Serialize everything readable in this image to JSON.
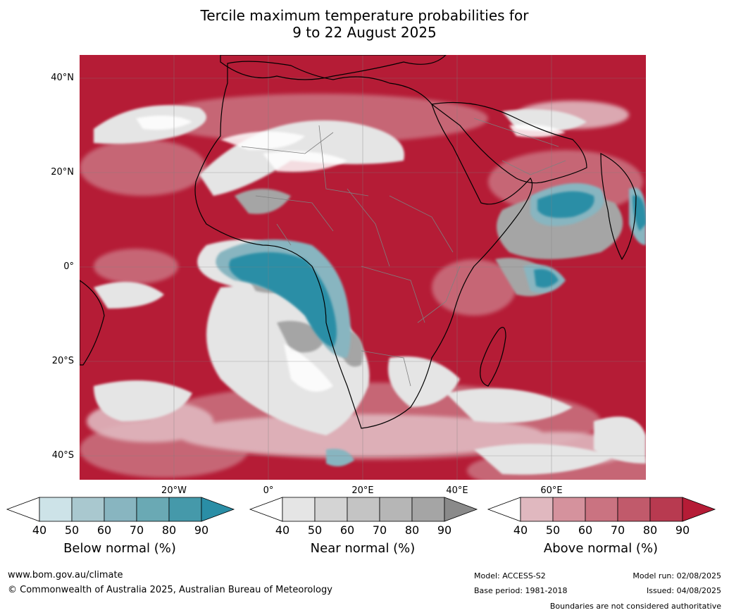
{
  "title": {
    "line1": "Tercile maximum temperature probabilities for",
    "line2": "9 to 22 August 2025"
  },
  "map": {
    "lat_labels": [
      "40°N",
      "20°N",
      "0°",
      "20°S",
      "40°S"
    ],
    "lon_labels": [
      "20°W",
      "0°",
      "20°E",
      "40°E",
      "60°E"
    ],
    "background_color": "#b51c36",
    "boundary_color": "#000000",
    "country_border_color": "#7f7f7f"
  },
  "legends": [
    {
      "title": "Below normal (%)",
      "ticks": [
        "40",
        "50",
        "60",
        "70",
        "80",
        "90"
      ],
      "colors": [
        "#ffffff",
        "#cde3e8",
        "#a9c8cf",
        "#88b5c0",
        "#6aa9b4",
        "#4599aa",
        "#2a8ea6"
      ]
    },
    {
      "title": "Near normal (%)",
      "ticks": [
        "40",
        "50",
        "60",
        "70",
        "80",
        "90"
      ],
      "colors": [
        "#ffffff",
        "#e5e5e5",
        "#d4d4d4",
        "#c4c4c4",
        "#b6b6b6",
        "#a5a5a5",
        "#8a8a8a"
      ]
    },
    {
      "title": "Above normal (%)",
      "ticks": [
        "40",
        "50",
        "60",
        "70",
        "80",
        "90"
      ],
      "colors": [
        "#ffffff",
        "#e0b8bf",
        "#d5929d",
        "#ca7381",
        "#c15a6b",
        "#b83a50",
        "#b51c36"
      ]
    }
  ],
  "footer": {
    "website": "www.bom.gov.au/climate",
    "copyright": "© Commonwealth of Australia 2025, Australian Bureau of Meteorology",
    "model": "Model: ACCESS-S2",
    "base_period": "Base period: 1981-2018",
    "model_run": "Model run: 02/08/2025",
    "issued": "Issued: 04/08/2025",
    "disclaimer": "Boundaries are not considered authoritative"
  }
}
